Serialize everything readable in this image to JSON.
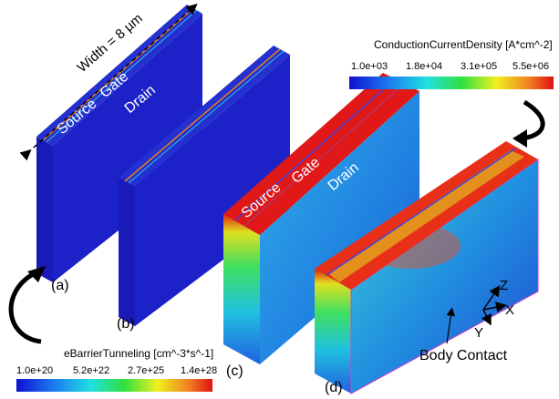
{
  "width_label": "Width = 8 µm",
  "panels": [
    {
      "label": "(a)",
      "terminals": [
        "Source",
        "Gate",
        "Drain"
      ]
    },
    {
      "label": "(b)"
    },
    {
      "label": "(c)",
      "terminals": [
        "Source",
        "Gate",
        "Drain"
      ]
    },
    {
      "label": "(d)"
    }
  ],
  "colorbars": [
    {
      "title": "ConductionCurrentDensity [A*cm^-2]",
      "ticks": [
        "1.0e+03",
        "1.8e+04",
        "3.1e+05",
        "5.5e+06"
      ]
    },
    {
      "title": "eBarrierTunneling [cm^-3*s^-1]",
      "ticks": [
        "1.0e+20",
        "5.2e+22",
        "2.7e+25",
        "1.4e+28"
      ]
    }
  ],
  "axes": [
    "Z",
    "X",
    "Y"
  ],
  "body_contact": "Body Contact"
}
